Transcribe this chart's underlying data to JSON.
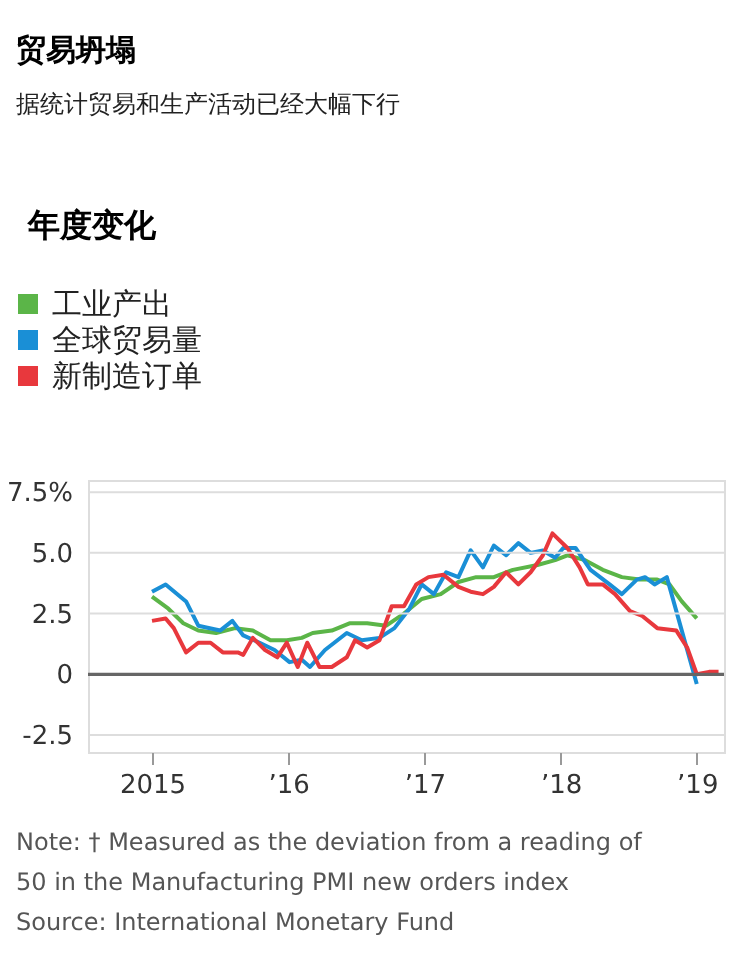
{
  "chart_data": {
    "type": "line",
    "title": "贸易坍塌",
    "subtitle": "据统计贸易和生产活动已经大幅下行",
    "legend_title": "年度变化",
    "series": [
      {
        "name": "工业产出",
        "color": "#5bb548",
        "x": [
          2015.0,
          2015.12,
          2015.23,
          2015.34,
          2015.47,
          2015.61,
          2015.74,
          2015.87,
          2015.99,
          2016.1,
          2016.18,
          2016.32,
          2016.45,
          2016.58,
          2016.72,
          2016.85,
          2016.98,
          2017.12,
          2017.25,
          2017.38,
          2017.51,
          2017.65,
          2017.83,
          2017.96,
          2018.05,
          2018.18,
          2018.31,
          2018.45,
          2018.58,
          2018.71,
          2018.8,
          2018.89,
          2019.0
        ],
        "values": [
          3.2,
          2.7,
          2.1,
          1.8,
          1.7,
          1.9,
          1.8,
          1.4,
          1.4,
          1.5,
          1.7,
          1.8,
          2.1,
          2.1,
          2.0,
          2.5,
          3.1,
          3.3,
          3.8,
          4.0,
          4.0,
          4.3,
          4.5,
          4.7,
          4.9,
          4.7,
          4.3,
          4.0,
          3.9,
          3.9,
          3.7,
          3.0,
          2.3
        ]
      },
      {
        "name": "全球贸易量",
        "color": "#1a8fd6",
        "x": [
          2015.0,
          2015.1,
          2015.25,
          2015.34,
          2015.5,
          2015.59,
          2015.67,
          2015.79,
          2015.9,
          2016.01,
          2016.1,
          2016.16,
          2016.27,
          2016.43,
          2016.54,
          2016.67,
          2016.78,
          2016.89,
          2016.98,
          2017.07,
          2017.16,
          2017.25,
          2017.34,
          2017.43,
          2017.51,
          2017.6,
          2017.69,
          2017.78,
          2017.87,
          2017.96,
          2018.02,
          2018.11,
          2018.22,
          2018.36,
          2018.45,
          2018.56,
          2018.62,
          2018.69,
          2018.78,
          2019.0
        ],
        "values": [
          3.4,
          3.7,
          3.0,
          2.0,
          1.8,
          2.2,
          1.6,
          1.3,
          1.0,
          0.5,
          0.6,
          0.3,
          1.0,
          1.7,
          1.4,
          1.5,
          1.9,
          2.7,
          3.7,
          3.3,
          4.2,
          4.0,
          5.1,
          4.4,
          5.3,
          4.9,
          5.4,
          5.0,
          5.1,
          4.8,
          5.2,
          5.2,
          4.3,
          3.7,
          3.3,
          3.9,
          4.0,
          3.7,
          4.0,
          -0.4
        ]
      },
      {
        "name": "新制造订单",
        "color": "#e8383d",
        "x": [
          2015.0,
          2015.1,
          2015.16,
          2015.25,
          2015.34,
          2015.43,
          2015.52,
          2015.63,
          2015.67,
          2015.74,
          2015.83,
          2015.92,
          2015.99,
          2016.07,
          2016.14,
          2016.23,
          2016.32,
          2016.43,
          2016.49,
          2016.58,
          2016.67,
          2016.76,
          2016.85,
          2016.94,
          2017.03,
          2017.14,
          2017.25,
          2017.34,
          2017.43,
          2017.51,
          2017.6,
          2017.69,
          2017.78,
          2017.87,
          2017.94,
          2018.05,
          2018.14,
          2018.2,
          2018.31,
          2018.4,
          2018.51,
          2018.6,
          2018.71,
          2018.85,
          2018.93,
          2019.0,
          2019.09,
          2019.16
        ],
        "values": [
          2.2,
          2.3,
          1.9,
          0.9,
          1.3,
          1.3,
          0.9,
          0.9,
          0.8,
          1.5,
          1.0,
          0.7,
          1.3,
          0.3,
          1.3,
          0.3,
          0.3,
          0.7,
          1.4,
          1.1,
          1.4,
          2.8,
          2.8,
          3.7,
          4.0,
          4.1,
          3.6,
          3.4,
          3.3,
          3.6,
          4.2,
          3.7,
          4.2,
          4.9,
          5.8,
          5.2,
          4.4,
          3.7,
          3.7,
          3.3,
          2.6,
          2.4,
          1.9,
          1.8,
          1.1,
          0.0,
          0.1,
          0.1
        ]
      }
    ],
    "xlim": [
      2014.53,
      2019.2
    ],
    "xticks": [
      {
        "value": 2015,
        "label": "2015"
      },
      {
        "value": 2016,
        "label": "’16"
      },
      {
        "value": 2017,
        "label": "’17"
      },
      {
        "value": 2018,
        "label": "’18"
      },
      {
        "value": 2019,
        "label": "’19"
      }
    ],
    "ylim": [
      -3.2,
      8
    ],
    "yticks": [
      -2.5,
      0,
      2.5,
      {
        "value": 5,
        "label": "5.0"
      },
      {
        "value": 7.5,
        "label": "7.5%"
      }
    ],
    "ref_lines": [
      {
        "axis": "y",
        "value": 0,
        "color": "#666666"
      }
    ],
    "grid": "y",
    "legend": "top left",
    "line_style": "solid",
    "marker": "none",
    "annotations": [
      "Note: † Measured as the deviation from a reading of",
      "50 in the Manufacturing PMI new orders index",
      "Source: International Monetary Fund"
    ]
  }
}
